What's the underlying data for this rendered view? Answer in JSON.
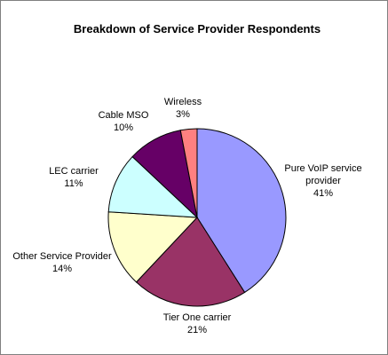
{
  "chart_data": {
    "type": "pie",
    "title": "Breakdown of Service Provider Respondents",
    "slices": [
      {
        "label_lines": [
          "Pure VoIP service",
          "provider"
        ],
        "pct_label": "41%",
        "value": 41,
        "color": "#9999ff"
      },
      {
        "label_lines": [
          "Tier One carrier"
        ],
        "pct_label": "21%",
        "value": 21,
        "color": "#993366"
      },
      {
        "label_lines": [
          "Other Service Provider"
        ],
        "pct_label": "14%",
        "value": 14,
        "color": "#ffffcc"
      },
      {
        "label_lines": [
          "LEC carrier"
        ],
        "pct_label": "11%",
        "value": 11,
        "color": "#ccffff"
      },
      {
        "label_lines": [
          "Cable MSO"
        ],
        "pct_label": "10%",
        "value": 10,
        "color": "#660066"
      },
      {
        "label_lines": [
          "Wireless"
        ],
        "pct_label": "3%",
        "value": 3,
        "color": "#ff8080"
      }
    ],
    "legend": "none"
  }
}
